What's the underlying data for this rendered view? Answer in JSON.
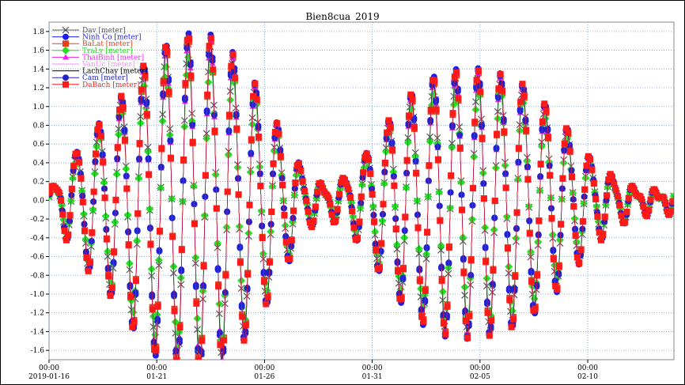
{
  "chart_data": {
    "type": "line",
    "title": "Bien8cua_2019",
    "xlabel": "",
    "ylabel": "",
    "ylim": [
      -1.7,
      1.9
    ],
    "xlim": [
      "2019-01-16 00:00",
      "2019-02-14 00:00"
    ],
    "grid": true,
    "legend_placement": "top-left",
    "y_ticks": [
      "1.8",
      "1.6",
      "1.4",
      "1.2",
      "1.0",
      "0.8",
      "0.6",
      "0.4",
      "0.2",
      "0.0",
      "-0.2",
      "-0.4",
      "-0.6",
      "-0.8",
      "-1.0",
      "-1.2",
      "-1.4",
      "-1.6"
    ],
    "x_ticks": [
      {
        "time": "00:00",
        "date": "2019-01-16"
      },
      {
        "time": "00:00",
        "date": "01-21"
      },
      {
        "time": "00:00",
        "date": "01-26"
      },
      {
        "time": "00:00",
        "date": "01-31"
      },
      {
        "time": "00:00",
        "date": "02-05"
      },
      {
        "time": "00:00",
        "date": "02-10"
      }
    ],
    "x_tick_days": [
      0,
      5,
      10,
      15,
      20,
      25
    ],
    "x_span_days": 29,
    "envelope": {
      "days": [
        0,
        0.5,
        1,
        2,
        3,
        4,
        5,
        6,
        7,
        8,
        9,
        10,
        11,
        12,
        13,
        14,
        15,
        16,
        17,
        18,
        19,
        20,
        21,
        22,
        23,
        24,
        25,
        26,
        27,
        28,
        29
      ],
      "amplitude": [
        0.1,
        0.25,
        0.45,
        0.75,
        1.0,
        1.35,
        1.6,
        1.75,
        1.8,
        1.7,
        1.45,
        1.1,
        0.65,
        0.25,
        0.15,
        0.3,
        0.6,
        0.95,
        1.2,
        1.35,
        1.4,
        1.4,
        1.35,
        1.25,
        1.05,
        0.8,
        0.5,
        0.3,
        0.15,
        0.1,
        0.1
      ]
    },
    "series": [
      {
        "name": "Dav [meter]",
        "color": "#555555",
        "marker": "x",
        "scale": 0.96
      },
      {
        "name": "Ninh Co [meter]",
        "color": "#1c1cf0",
        "marker": "circle",
        "scale": 1.03
      },
      {
        "name": "BaLat [meter]",
        "color": "#e8401c",
        "marker": "square",
        "scale": 1.0
      },
      {
        "name": "TraLy [meter]",
        "color": "#22e022",
        "marker": "diamond",
        "scale": 0.88
      },
      {
        "name": "ThaiBinh [meter]",
        "color": "#ee22ee",
        "marker": "triangle",
        "scale": 0.99
      },
      {
        "name": "VanUc [meter]",
        "color": "#ff88ff",
        "marker": "none",
        "scale": 0.94
      },
      {
        "name": "LachChay [meter]",
        "color": "#000000",
        "marker": "none",
        "scale": 0.97
      },
      {
        "name": "Cam [meter]",
        "color": "#2222cc",
        "marker": "circle",
        "scale": 1.01
      },
      {
        "name": "DaBach [meter]",
        "color": "#ff1a1a",
        "marker": "square",
        "scale": 1.02
      }
    ]
  }
}
